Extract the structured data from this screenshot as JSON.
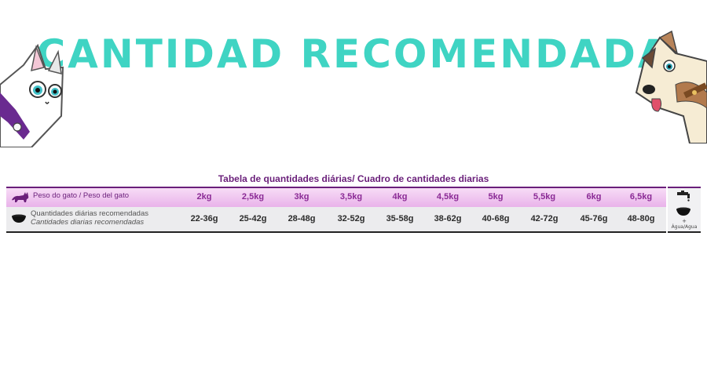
{
  "header": {
    "title": "CANTIDAD RECOMENDADA"
  },
  "mascots": {
    "left": "cat-mascot-icon",
    "right": "dog-mascot-icon"
  },
  "table": {
    "caption": "Tabela de quantidades diárias/ Cuadro de cantidades diarias",
    "weight_label": "Peso do gato / Peso del gato",
    "qty_label_pt": "Quantidades diárias recomendadas",
    "qty_label_es": "Cantidades diarias recomendadas",
    "columns": [
      {
        "weight": "2kg",
        "qty": "22-36g"
      },
      {
        "weight": "2,5kg",
        "qty": "25-42g"
      },
      {
        "weight": "3kg",
        "qty": "28-48g"
      },
      {
        "weight": "3,5kg",
        "qty": "32-52g"
      },
      {
        "weight": "4kg",
        "qty": "35-58g"
      },
      {
        "weight": "4,5kg",
        "qty": "38-62g"
      },
      {
        "weight": "5kg",
        "qty": "40-68g"
      },
      {
        "weight": "5,5kg",
        "qty": "42-72g"
      },
      {
        "weight": "6kg",
        "qty": "45-76g"
      },
      {
        "weight": "6,5kg",
        "qty": "48-80g"
      }
    ],
    "water": {
      "plus": "+",
      "label": "Água/Agua"
    }
  },
  "colors": {
    "title": "#3fd4c3",
    "accent": "#6a1f7a",
    "weight_text": "#8a2a95"
  }
}
